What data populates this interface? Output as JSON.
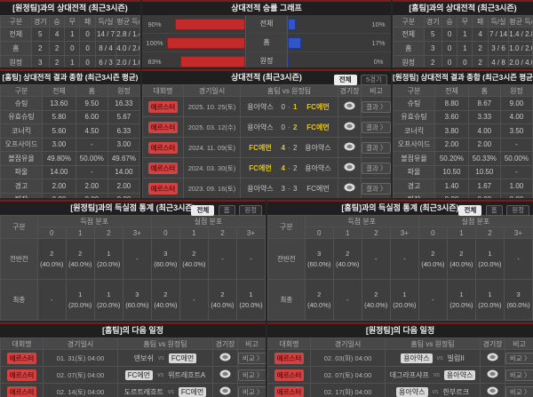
{
  "vs_label": "vs",
  "h2h_away": {
    "title": "[원정팀]과의 상대전적 (최근3시즌)",
    "columns": [
      "구분",
      "경기",
      "승",
      "무",
      "패",
      "득/실",
      "평균 득/실"
    ],
    "rows": [
      {
        "label": "전체",
        "cells": [
          "5",
          "4",
          "1",
          "0",
          "14 / 7",
          "2.8 / 1.4"
        ]
      },
      {
        "label": "홈",
        "cells": [
          "2",
          "2",
          "0",
          "0",
          "8 / 4",
          "4.0 / 2.0"
        ]
      },
      {
        "label": "원정",
        "cells": [
          "3",
          "2",
          "1",
          "0",
          "6 / 3",
          "2.0 / 1.0"
        ]
      }
    ]
  },
  "graph": {
    "title": "상대전적 승률 그래프",
    "left_color": "#c32a2a",
    "right_color": "#2f55c8",
    "rows": [
      {
        "label": "전체",
        "left_pct": "90%",
        "left_val": 90,
        "right_pct": "10%",
        "right_val": 10
      },
      {
        "label": "홈",
        "left_pct": "100%",
        "left_val": 100,
        "right_pct": "17%",
        "right_val": 17
      },
      {
        "label": "원정",
        "left_pct": "83%",
        "left_val": 83,
        "right_pct": "0%",
        "right_val": 0
      }
    ]
  },
  "h2h_home": {
    "title": "[홈팀]과의 상대전적 (최근3시즌)",
    "columns": [
      "구분",
      "경기",
      "승",
      "무",
      "패",
      "득/실",
      "평균 득/실"
    ],
    "rows": [
      {
        "label": "전체",
        "cells": [
          "5",
          "0",
          "1",
          "4",
          "7 / 14",
          "1.4 / 2.8"
        ]
      },
      {
        "label": "홈",
        "cells": [
          "3",
          "0",
          "1",
          "2",
          "3 / 6",
          "1.0 / 2.0"
        ]
      },
      {
        "label": "원정",
        "cells": [
          "2",
          "0",
          "0",
          "2",
          "4 / 8",
          "2.0 / 4.0"
        ]
      }
    ]
  },
  "stats_home": {
    "title": "[홈팀] 상대전적 결과 종합 (최근3시즌 평균)",
    "columns": [
      "구분",
      "전체",
      "홈",
      "원정"
    ],
    "rows": [
      {
        "label": "슈팅",
        "cells": [
          "13.60",
          "9.50",
          "16.33"
        ]
      },
      {
        "label": "유효슈팅",
        "cells": [
          "5.80",
          "6.00",
          "5.67"
        ]
      },
      {
        "label": "코너킥",
        "cells": [
          "5.60",
          "4.50",
          "6.33"
        ]
      },
      {
        "label": "오프사이드",
        "cells": [
          "3.00",
          "-",
          "3.00"
        ]
      },
      {
        "label": "볼점유율",
        "cells": [
          "49.80%",
          "50.00%",
          "49.67%"
        ]
      },
      {
        "label": "파울",
        "cells": [
          "14.00",
          "-",
          "14.00"
        ]
      },
      {
        "label": "경고",
        "cells": [
          "2.00",
          "2.00",
          "2.00"
        ]
      },
      {
        "label": "퇴장",
        "cells": [
          "0.00",
          "0.00",
          "0.00"
        ]
      }
    ]
  },
  "h2h_list": {
    "title": "상대전적 (최근3시즌)",
    "filters": [
      {
        "label": "전체",
        "active": true
      },
      {
        "label": "5경기",
        "active": false
      }
    ],
    "columns": [
      "대회명",
      "경기일시",
      "홈팀 vs 원정팀",
      "경기장",
      "비고"
    ],
    "result_label": "결과 〉",
    "rows": [
      {
        "comp": "에르스터",
        "date": "2025. 10. 25(토)",
        "home": "용아약스",
        "hs": "0",
        "as": "1",
        "away": "FC에먼",
        "home_win": false,
        "away_win": true
      },
      {
        "comp": "에르스터",
        "date": "2025. 03. 12(수)",
        "home": "용아약스",
        "hs": "0",
        "as": "2",
        "away": "FC에먼",
        "home_win": false,
        "away_win": true
      },
      {
        "comp": "에르스터",
        "date": "2024. 11. 09(토)",
        "home": "FC에먼",
        "hs": "4",
        "as": "2",
        "away": "용아약스",
        "home_win": true,
        "away_win": false
      },
      {
        "comp": "에르스터",
        "date": "2024. 03. 30(토)",
        "home": "FC에먼",
        "hs": "4",
        "as": "2",
        "away": "용아약스",
        "home_win": true,
        "away_win": false
      },
      {
        "comp": "에르스터",
        "date": "2023. 09. 16(토)",
        "home": "용아약스",
        "hs": "3",
        "as": "3",
        "away": "FC에먼",
        "home_win": false,
        "away_win": false
      }
    ]
  },
  "stats_away": {
    "title": "[원정팀] 상대전적 결과 종합 (최근3시즌 평균)",
    "columns": [
      "구분",
      "전체",
      "홈",
      "원정"
    ],
    "rows": [
      {
        "label": "슈팅",
        "cells": [
          "8.80",
          "8.67",
          "9.00"
        ]
      },
      {
        "label": "유효슈팅",
        "cells": [
          "3.60",
          "3.33",
          "4.00"
        ]
      },
      {
        "label": "코너킥",
        "cells": [
          "3.80",
          "4.00",
          "3.50"
        ]
      },
      {
        "label": "오프사이드",
        "cells": [
          "2.00",
          "2.00",
          "-"
        ]
      },
      {
        "label": "볼점유율",
        "cells": [
          "50.20%",
          "50.33%",
          "50.00%"
        ]
      },
      {
        "label": "파울",
        "cells": [
          "10.50",
          "10.50",
          "-"
        ]
      },
      {
        "label": "경고",
        "cells": [
          "1.40",
          "1.67",
          "1.00"
        ]
      },
      {
        "label": "퇴장",
        "cells": [
          "0.00",
          "0.00",
          "0.00"
        ]
      }
    ]
  },
  "goal_home": {
    "title": "[원정팀]과의 득실점 통계 (최근3시즌)",
    "filters": [
      {
        "label": "전체",
        "active": true
      },
      {
        "label": "홈",
        "active": false
      },
      {
        "label": "원정",
        "active": false
      }
    ],
    "col_label": "구분",
    "group1": "득점 분포",
    "group2": "실점 분포",
    "subcols": [
      "0",
      "1",
      "2",
      "3+",
      "0",
      "1",
      "2",
      "3+"
    ],
    "rows": [
      {
        "label": "전반전",
        "cells": [
          "2\n(40.0%)",
          "2\n(40.0%)",
          "1\n(20.0%)",
          "-",
          "3\n(60.0%)",
          "2\n(40.0%)",
          "-",
          "-"
        ]
      },
      {
        "label": "최종",
        "cells": [
          "-",
          "1\n(20.0%)",
          "1\n(20.0%)",
          "3\n(60.0%)",
          "2\n(40.0%)",
          "-",
          "2\n(40.0%)",
          "1\n(20.0%)"
        ]
      }
    ]
  },
  "goal_away": {
    "title": "[홈팀]과의 득실점 통계 (최근3시즌)",
    "filters": [
      {
        "label": "전체",
        "active": true
      },
      {
        "label": "홈",
        "active": false
      },
      {
        "label": "원정",
        "active": false
      }
    ],
    "col_label": "구분",
    "group1": "득점 분포",
    "group2": "실점 분포",
    "subcols": [
      "0",
      "1",
      "2",
      "3+",
      "0",
      "1",
      "2",
      "3+"
    ],
    "rows": [
      {
        "label": "전반전",
        "cells": [
          "3\n(60.0%)",
          "2\n(40.0%)",
          "-",
          "-",
          "2\n(40.0%)",
          "2\n(40.0%)",
          "1\n(20.0%)",
          "-"
        ]
      },
      {
        "label": "최종",
        "cells": [
          "2\n(40.0%)",
          "-",
          "2\n(40.0%)",
          "1\n(20.0%)",
          "-",
          "1\n(20.0%)",
          "1\n(20.0%)",
          "3\n(60.0%)"
        ]
      }
    ]
  },
  "sched_home": {
    "title": "[홈팀]의 다음 일정",
    "columns": [
      "대회명",
      "경기일시",
      "홈팀 vs 원정팀",
      "경기장",
      "비고"
    ],
    "compare_label": "비교 〉",
    "rows": [
      {
        "comp": "에르스터",
        "date": "01. 31(토) 04:00",
        "home": "덴보쉬",
        "away": "FC에먼",
        "home_box": false,
        "away_box": true
      },
      {
        "comp": "에르스터",
        "date": "02. 07(토) 04:00",
        "home": "FC에먼",
        "away": "위트레흐트A",
        "home_box": true,
        "away_box": false
      },
      {
        "comp": "에르스터",
        "date": "02. 14(토) 04:00",
        "home": "도르트레흐트",
        "away": "FC에먼",
        "home_box": false,
        "away_box": true
      }
    ]
  },
  "sched_away": {
    "title": "[원정팀]의 다음 일정",
    "columns": [
      "대회명",
      "경기일시",
      "홈팀 vs 원정팀",
      "경기장",
      "비고"
    ],
    "compare_label": "비교 〉",
    "rows": [
      {
        "comp": "에르스터",
        "date": "02. 03(화) 04:00",
        "home": "용아약스",
        "away": "빌럼II",
        "home_box": true,
        "away_box": false
      },
      {
        "comp": "에르스터",
        "date": "02. 07(토) 04:00",
        "home": "데그라프샤프",
        "away": "용아약스",
        "home_box": false,
        "away_box": true
      },
      {
        "comp": "에르스터",
        "date": "02. 17(화) 04:00",
        "home": "용아약스",
        "away": "한부르크",
        "home_box": true,
        "away_box": false
      }
    ]
  }
}
